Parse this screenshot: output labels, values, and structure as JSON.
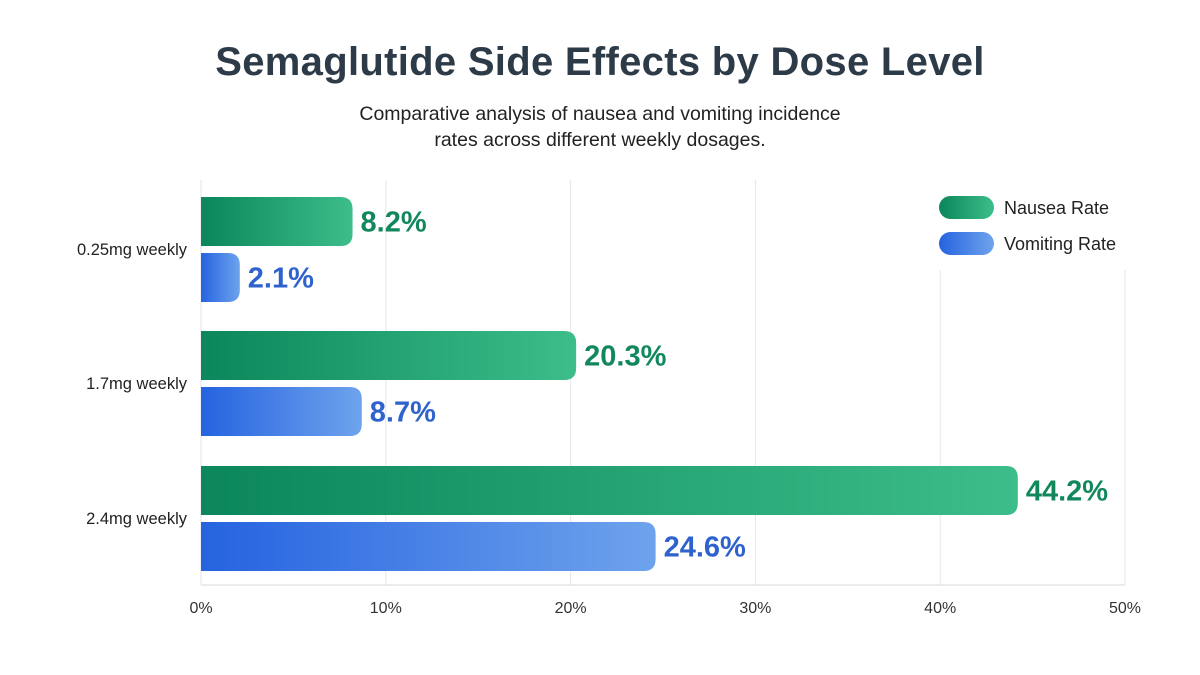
{
  "chart_data": {
    "type": "bar",
    "orientation": "horizontal",
    "title": "Semaglutide Side Effects by Dose Level",
    "subtitle": "Comparative analysis of nausea and vomiting incidence rates across different weekly dosages.",
    "categories": [
      "0.25mg weekly",
      "1.7mg weekly",
      "2.4mg weekly"
    ],
    "series": [
      {
        "name": "Nausea Rate",
        "values": [
          8.2,
          20.3,
          44.2
        ],
        "color_start": "#0b875b",
        "color_end": "#3dbd8a",
        "label_color": "#11875c"
      },
      {
        "name": "Vomiting Rate",
        "values": [
          2.1,
          8.7,
          24.6
        ],
        "color_start": "#2563e0",
        "color_end": "#6ea3ec",
        "label_color": "#2e62cc"
      }
    ],
    "value_labels": [
      [
        "8.2%",
        "20.3%",
        "44.2%"
      ],
      [
        "2.1%",
        "8.7%",
        "24.6%"
      ]
    ],
    "xlim": [
      0,
      50
    ],
    "x_ticks": [
      "0%",
      "10%",
      "20%",
      "30%",
      "40%",
      "50%"
    ],
    "grid": "vertical",
    "legend": "top-right"
  }
}
